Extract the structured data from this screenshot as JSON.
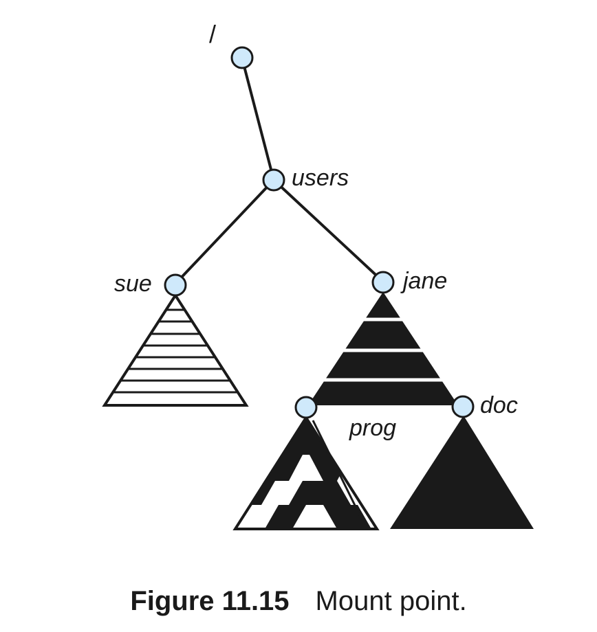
{
  "diagram": {
    "root_label": "/",
    "nodes": {
      "root": "",
      "users": "users",
      "sue": "sue",
      "jane": "jane",
      "prog": "prog",
      "doc": "doc"
    }
  },
  "caption": {
    "number": "Figure 11.15",
    "text": "Mount point."
  },
  "colors": {
    "node_fill": "#cfe9fb",
    "stroke": "#1a1a1a",
    "background": "#ffffff"
  }
}
